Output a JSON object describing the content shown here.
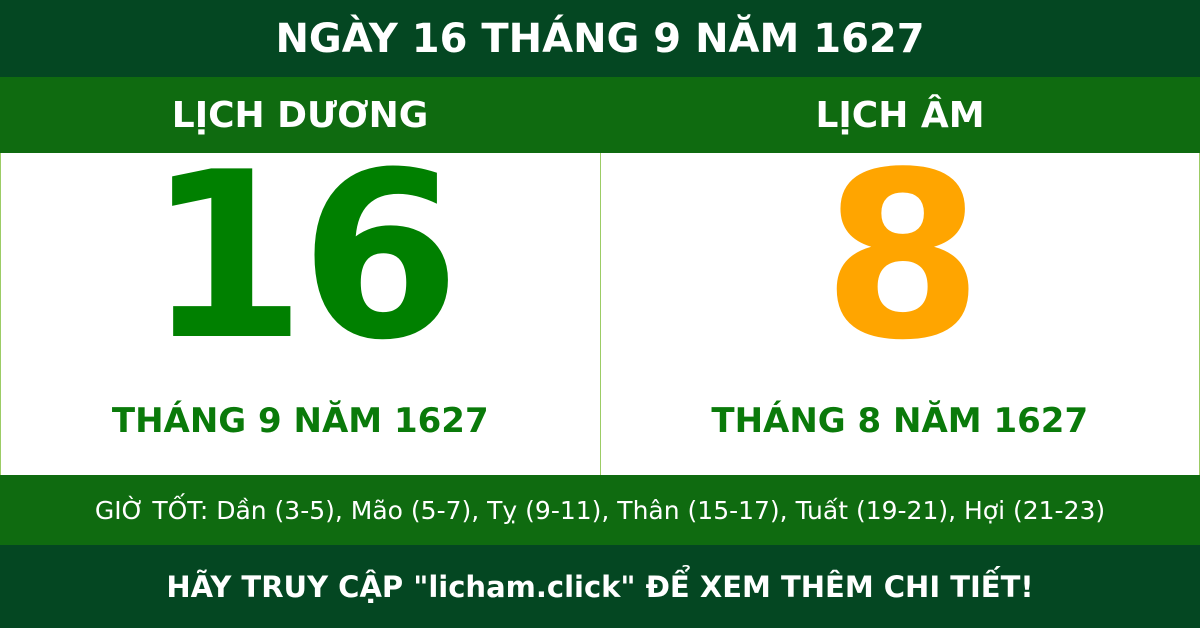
{
  "title": "NGÀY 16 THÁNG 9 NĂM 1627",
  "solar": {
    "label": "LỊCH DƯƠNG",
    "day": "16",
    "month_year": "THÁNG 9 NĂM 1627"
  },
  "lunar": {
    "label": "LỊCH ÂM",
    "day": "8",
    "month_year": "THÁNG 8 NĂM 1627"
  },
  "good_hours": "GIỜ TỐT: Dần (3-5), Mão (5-7), Tỵ (9-11), Thân (15-17), Tuất (19-21), Hợi (21-23)",
  "footer": "HÃY TRUY CẬP \"licham.click\" ĐỂ XEM THÊM CHI TIẾT!",
  "colors": {
    "dark_green": "#044722",
    "band_green": "#0f6b10",
    "solar_day": "#008000",
    "lunar_day": "#FFA500"
  }
}
